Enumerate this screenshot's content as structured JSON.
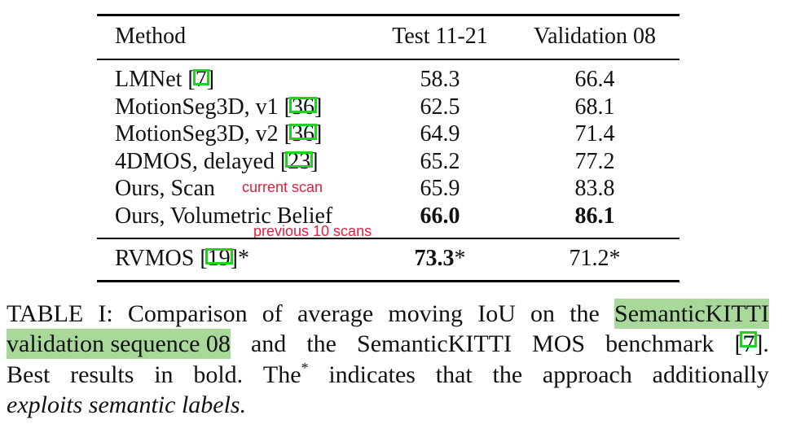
{
  "table": {
    "headers": [
      "Method",
      "Test 11-21",
      "Validation 08"
    ],
    "rows": [
      {
        "name": "LMNet [",
        "cite": "7",
        "close": "]",
        "test": "58.3",
        "val": "66.4"
      },
      {
        "name": "MotionSeg3D, v1 [",
        "cite": "36",
        "close": "]",
        "test": "62.5",
        "val": "68.1"
      },
      {
        "name": "MotionSeg3D, v2 [",
        "cite": "36",
        "close": "]",
        "test": "64.9",
        "val": "71.4"
      },
      {
        "name": "4DMOS, delayed [",
        "cite": "23",
        "close": "]",
        "test": "65.2",
        "val": "77.2"
      },
      {
        "name": "Ours, Scan",
        "cite": "",
        "close": "",
        "test": "65.9",
        "val": "83.8"
      },
      {
        "name": "Ours, Volumetric Belief",
        "cite": "",
        "close": "",
        "test": "66.0",
        "val": "86.1"
      }
    ],
    "extra_row": {
      "name": "RVMOS [",
      "cite": "19",
      "close": "]*",
      "test": "73.3",
      "test_suffix": "*",
      "val": "71.2*"
    }
  },
  "annotations": {
    "current_scan": "current scan",
    "previous_scans": "previous 10 scans"
  },
  "caption": {
    "line1": [
      "TABLE",
      "I:",
      "Comparison",
      "of",
      "average",
      "moving",
      "IoU",
      "on",
      "the"
    ],
    "line1_highlight": "SemanticKITTI",
    "line2_highlight": "validation sequence 08",
    "line2": [
      "and",
      "the",
      "SemanticKITTI",
      "MOS",
      "benchmark"
    ],
    "line2_cite_open": "[",
    "line2_cite": "7",
    "line2_cite_close": "].",
    "line3": [
      "Best",
      "results",
      "in",
      "bold.",
      "The"
    ],
    "line3_star": "*",
    "line3_rest": [
      "indicates",
      "that",
      "the",
      "approach",
      "additionally"
    ],
    "line4": "exploits semantic labels."
  }
}
